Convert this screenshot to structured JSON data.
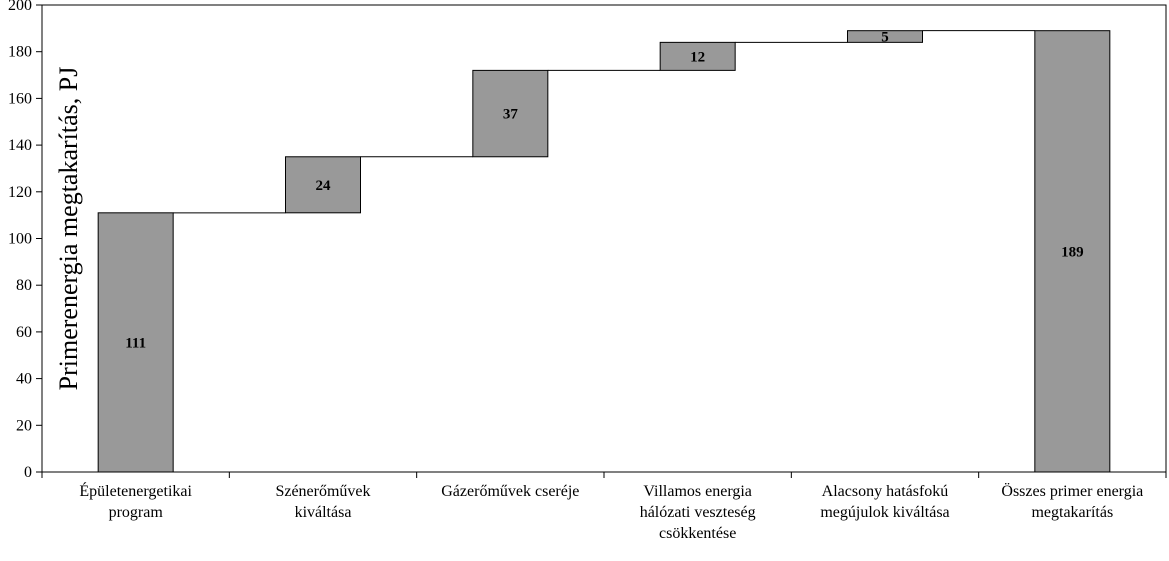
{
  "chart_data": {
    "type": "bar",
    "subtype": "waterfall",
    "ylabel": "Primerenergia megtakarítás, PJ",
    "xlabel": "",
    "ylim": [
      0,
      200
    ],
    "yticks": [
      0,
      20,
      40,
      60,
      80,
      100,
      120,
      140,
      160,
      180,
      200
    ],
    "grid": false,
    "categories": [
      [
        "Épületenergetikai",
        "program"
      ],
      [
        "Szénerőművek",
        "kiváltása"
      ],
      [
        "Gázerőművek cseréje"
      ],
      [
        "Villamos energia",
        "hálózati veszteség",
        "csökkentése"
      ],
      [
        "Alacsony hatásfokú",
        "megújulok kiváltása"
      ],
      [
        "Összes primer energia",
        "megtakarítás"
      ]
    ],
    "values": [
      111,
      24,
      37,
      12,
      5,
      189
    ],
    "bar_start": [
      0,
      111,
      135,
      172,
      184,
      0
    ],
    "bar_end": [
      111,
      135,
      172,
      184,
      189,
      189
    ],
    "data_labels": [
      "111",
      "24",
      "37",
      "12",
      "5",
      "189"
    ],
    "colors": {
      "bar_fill": "#999999",
      "bar_stroke": "#000000"
    }
  }
}
